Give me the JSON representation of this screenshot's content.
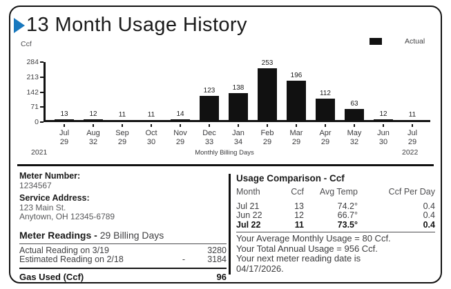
{
  "header": {
    "title": "13 Month Usage History",
    "unit_label": "Ccf",
    "legend": {
      "label": "Actual",
      "swatch_color": "#111111"
    }
  },
  "chart_data": {
    "type": "bar",
    "title": "13 Month Usage History",
    "ylabel": "Ccf",
    "ylim": [
      0,
      284
    ],
    "yticks": [
      0,
      71,
      142,
      213,
      284
    ],
    "categories": [
      "Jul",
      "Aug",
      "Sep",
      "Oct",
      "Nov",
      "Dec",
      "Jan",
      "Feb",
      "Mar",
      "Apr",
      "May",
      "Jun",
      "Jul"
    ],
    "billing_days": [
      29,
      32,
      29,
      30,
      29,
      33,
      34,
      29,
      29,
      29,
      32,
      30,
      29
    ],
    "series": [
      {
        "name": "Actual",
        "values": [
          13,
          12,
          11,
          11,
          14,
          123,
          138,
          253,
          196,
          112,
          63,
          12,
          11
        ]
      }
    ],
    "values": [
      13,
      12,
      11,
      11,
      14,
      123,
      138,
      253,
      196,
      112,
      63,
      12,
      11
    ],
    "bar_color": "#111111",
    "grid": false,
    "legend_position": "top-right",
    "x_axis_note": "Monthly Billing Days",
    "year_left": "2021",
    "year_right": "2022"
  },
  "footer_left": {
    "meter_number_label": "Meter Number:",
    "meter_number_value": "1234567",
    "service_address_label": "Service Address:",
    "service_address_line1": "123 Main St.",
    "service_address_line2": "Anytown, OH 12345-6789",
    "meter_readings_label": "Meter Readings -",
    "meter_readings_suffix": "29 Billing Days",
    "readings": [
      {
        "label": "Actual Reading on  3/19",
        "operator": "",
        "value": "3280"
      },
      {
        "label": "Estimated Reading on  2/18",
        "operator": "-",
        "value": "3184"
      }
    ],
    "total_label": "Gas Used (Ccf)",
    "total_value": "96"
  },
  "usage_comparison": {
    "title": "Usage Comparison - Ccf",
    "columns": [
      "Month",
      "Ccf",
      "Avg Temp",
      "Ccf Per Day"
    ],
    "rows": [
      {
        "month": "Jul 21",
        "ccf": "13",
        "avg_temp": "74.2°",
        "ccf_per_day": "0.4",
        "bold": false
      },
      {
        "month": "Jun 22",
        "ccf": "12",
        "avg_temp": "66.7°",
        "ccf_per_day": "0.4",
        "bold": false
      },
      {
        "month": "Jul 22",
        "ccf": "11",
        "avg_temp": "73.5°",
        "ccf_per_day": "0.4",
        "bold": true
      }
    ],
    "summary": [
      "Your Average Monthly Usage = 80 Ccf.",
      "Your Total Annual Usage = 956 Ccf.",
      "Your next meter reading date is",
      "04/17/2026."
    ]
  },
  "colors": {
    "accent_blue": "#1878be",
    "bar": "#111111",
    "text_dark": "#1a1a1a",
    "text_gray": "#58595b"
  }
}
